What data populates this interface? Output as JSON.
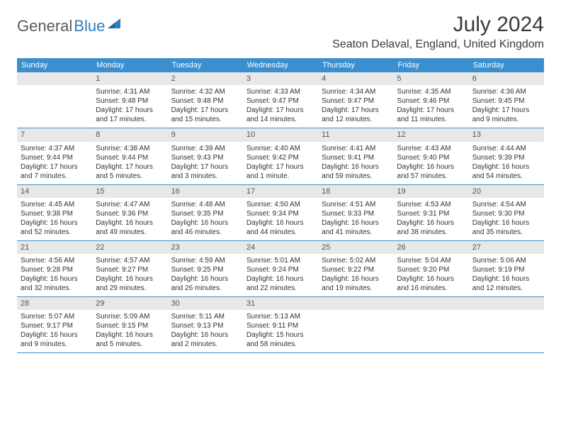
{
  "logo": {
    "main": "General",
    "accent": "Blue"
  },
  "title": "July 2024",
  "location": "Seaton Delaval, England, United Kingdom",
  "colors": {
    "header_bg": "#3b8fcf",
    "header_text": "#ffffff",
    "daynum_bg": "#e8e8e8",
    "daynum_text": "#555555",
    "border": "#3b8fcf",
    "text": "#333333",
    "title_text": "#3a3a3a",
    "logo_blue": "#2f7fbf"
  },
  "day_headers": [
    "Sunday",
    "Monday",
    "Tuesday",
    "Wednesday",
    "Thursday",
    "Friday",
    "Saturday"
  ],
  "weeks": [
    [
      {
        "num": "",
        "sunrise": "",
        "sunset": "",
        "daylight": ""
      },
      {
        "num": "1",
        "sunrise": "Sunrise: 4:31 AM",
        "sunset": "Sunset: 9:48 PM",
        "daylight": "Daylight: 17 hours and 17 minutes."
      },
      {
        "num": "2",
        "sunrise": "Sunrise: 4:32 AM",
        "sunset": "Sunset: 9:48 PM",
        "daylight": "Daylight: 17 hours and 15 minutes."
      },
      {
        "num": "3",
        "sunrise": "Sunrise: 4:33 AM",
        "sunset": "Sunset: 9:47 PM",
        "daylight": "Daylight: 17 hours and 14 minutes."
      },
      {
        "num": "4",
        "sunrise": "Sunrise: 4:34 AM",
        "sunset": "Sunset: 9:47 PM",
        "daylight": "Daylight: 17 hours and 12 minutes."
      },
      {
        "num": "5",
        "sunrise": "Sunrise: 4:35 AM",
        "sunset": "Sunset: 9:46 PM",
        "daylight": "Daylight: 17 hours and 11 minutes."
      },
      {
        "num": "6",
        "sunrise": "Sunrise: 4:36 AM",
        "sunset": "Sunset: 9:45 PM",
        "daylight": "Daylight: 17 hours and 9 minutes."
      }
    ],
    [
      {
        "num": "7",
        "sunrise": "Sunrise: 4:37 AM",
        "sunset": "Sunset: 9:44 PM",
        "daylight": "Daylight: 17 hours and 7 minutes."
      },
      {
        "num": "8",
        "sunrise": "Sunrise: 4:38 AM",
        "sunset": "Sunset: 9:44 PM",
        "daylight": "Daylight: 17 hours and 5 minutes."
      },
      {
        "num": "9",
        "sunrise": "Sunrise: 4:39 AM",
        "sunset": "Sunset: 9:43 PM",
        "daylight": "Daylight: 17 hours and 3 minutes."
      },
      {
        "num": "10",
        "sunrise": "Sunrise: 4:40 AM",
        "sunset": "Sunset: 9:42 PM",
        "daylight": "Daylight: 17 hours and 1 minute."
      },
      {
        "num": "11",
        "sunrise": "Sunrise: 4:41 AM",
        "sunset": "Sunset: 9:41 PM",
        "daylight": "Daylight: 16 hours and 59 minutes."
      },
      {
        "num": "12",
        "sunrise": "Sunrise: 4:43 AM",
        "sunset": "Sunset: 9:40 PM",
        "daylight": "Daylight: 16 hours and 57 minutes."
      },
      {
        "num": "13",
        "sunrise": "Sunrise: 4:44 AM",
        "sunset": "Sunset: 9:39 PM",
        "daylight": "Daylight: 16 hours and 54 minutes."
      }
    ],
    [
      {
        "num": "14",
        "sunrise": "Sunrise: 4:45 AM",
        "sunset": "Sunset: 9:38 PM",
        "daylight": "Daylight: 16 hours and 52 minutes."
      },
      {
        "num": "15",
        "sunrise": "Sunrise: 4:47 AM",
        "sunset": "Sunset: 9:36 PM",
        "daylight": "Daylight: 16 hours and 49 minutes."
      },
      {
        "num": "16",
        "sunrise": "Sunrise: 4:48 AM",
        "sunset": "Sunset: 9:35 PM",
        "daylight": "Daylight: 16 hours and 46 minutes."
      },
      {
        "num": "17",
        "sunrise": "Sunrise: 4:50 AM",
        "sunset": "Sunset: 9:34 PM",
        "daylight": "Daylight: 16 hours and 44 minutes."
      },
      {
        "num": "18",
        "sunrise": "Sunrise: 4:51 AM",
        "sunset": "Sunset: 9:33 PM",
        "daylight": "Daylight: 16 hours and 41 minutes."
      },
      {
        "num": "19",
        "sunrise": "Sunrise: 4:53 AM",
        "sunset": "Sunset: 9:31 PM",
        "daylight": "Daylight: 16 hours and 38 minutes."
      },
      {
        "num": "20",
        "sunrise": "Sunrise: 4:54 AM",
        "sunset": "Sunset: 9:30 PM",
        "daylight": "Daylight: 16 hours and 35 minutes."
      }
    ],
    [
      {
        "num": "21",
        "sunrise": "Sunrise: 4:56 AM",
        "sunset": "Sunset: 9:28 PM",
        "daylight": "Daylight: 16 hours and 32 minutes."
      },
      {
        "num": "22",
        "sunrise": "Sunrise: 4:57 AM",
        "sunset": "Sunset: 9:27 PM",
        "daylight": "Daylight: 16 hours and 29 minutes."
      },
      {
        "num": "23",
        "sunrise": "Sunrise: 4:59 AM",
        "sunset": "Sunset: 9:25 PM",
        "daylight": "Daylight: 16 hours and 26 minutes."
      },
      {
        "num": "24",
        "sunrise": "Sunrise: 5:01 AM",
        "sunset": "Sunset: 9:24 PM",
        "daylight": "Daylight: 16 hours and 22 minutes."
      },
      {
        "num": "25",
        "sunrise": "Sunrise: 5:02 AM",
        "sunset": "Sunset: 9:22 PM",
        "daylight": "Daylight: 16 hours and 19 minutes."
      },
      {
        "num": "26",
        "sunrise": "Sunrise: 5:04 AM",
        "sunset": "Sunset: 9:20 PM",
        "daylight": "Daylight: 16 hours and 16 minutes."
      },
      {
        "num": "27",
        "sunrise": "Sunrise: 5:06 AM",
        "sunset": "Sunset: 9:19 PM",
        "daylight": "Daylight: 16 hours and 12 minutes."
      }
    ],
    [
      {
        "num": "28",
        "sunrise": "Sunrise: 5:07 AM",
        "sunset": "Sunset: 9:17 PM",
        "daylight": "Daylight: 16 hours and 9 minutes."
      },
      {
        "num": "29",
        "sunrise": "Sunrise: 5:09 AM",
        "sunset": "Sunset: 9:15 PM",
        "daylight": "Daylight: 16 hours and 5 minutes."
      },
      {
        "num": "30",
        "sunrise": "Sunrise: 5:11 AM",
        "sunset": "Sunset: 9:13 PM",
        "daylight": "Daylight: 16 hours and 2 minutes."
      },
      {
        "num": "31",
        "sunrise": "Sunrise: 5:13 AM",
        "sunset": "Sunset: 9:11 PM",
        "daylight": "Daylight: 15 hours and 58 minutes."
      },
      {
        "num": "",
        "sunrise": "",
        "sunset": "",
        "daylight": ""
      },
      {
        "num": "",
        "sunrise": "",
        "sunset": "",
        "daylight": ""
      },
      {
        "num": "",
        "sunrise": "",
        "sunset": "",
        "daylight": ""
      }
    ]
  ]
}
